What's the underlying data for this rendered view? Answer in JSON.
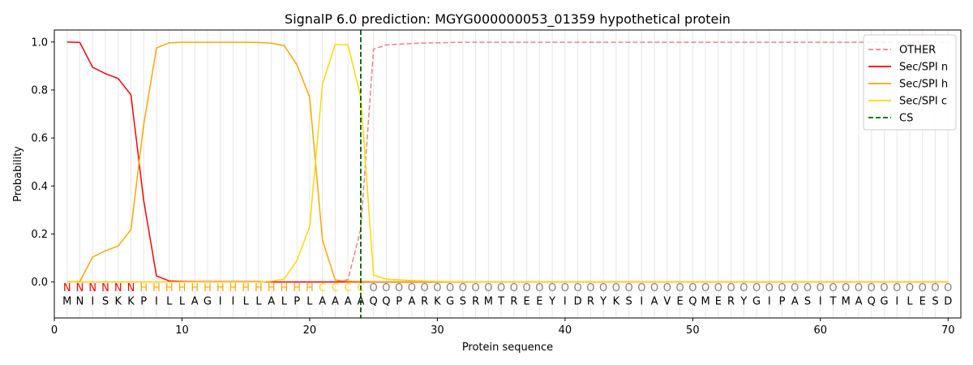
{
  "chart_data": {
    "type": "line",
    "title": "SignalP 6.0 prediction: MGYG000000053_01359 hypothetical protein",
    "xlabel": "Protein sequence",
    "ylabel": "Probability",
    "xlim": [
      0,
      71
    ],
    "ylim": [
      -0.15,
      1.05
    ],
    "xticks": [
      "0",
      "10",
      "20",
      "30",
      "40",
      "50",
      "60",
      "70"
    ],
    "yticks": [
      "0.0",
      "0.2",
      "0.4",
      "0.6",
      "0.8",
      "1.0"
    ],
    "legend_position": "top-right",
    "sequence": [
      "M",
      "N",
      "I",
      "S",
      "K",
      "K",
      "P",
      "I",
      "L",
      "L",
      "A",
      "G",
      "I",
      "I",
      "L",
      "L",
      "A",
      "L",
      "P",
      "L",
      "A",
      "A",
      "A",
      "A",
      "Q",
      "Q",
      "P",
      "A",
      "R",
      "K",
      "G",
      "S",
      "R",
      "M",
      "T",
      "R",
      "E",
      "E",
      "Y",
      "I",
      "D",
      "R",
      "Y",
      "K",
      "S",
      "I",
      "A",
      "V",
      "E",
      "Q",
      "M",
      "E",
      "R",
      "Y",
      "G",
      "I",
      "P",
      "A",
      "S",
      "I",
      "T",
      "M",
      "A",
      "Q",
      "G",
      "I",
      "L",
      "E",
      "S",
      "D"
    ],
    "region_labels": [
      "N",
      "N",
      "N",
      "N",
      "N",
      "N",
      "H",
      "H",
      "H",
      "H",
      "H",
      "H",
      "H",
      "H",
      "H",
      "H",
      "H",
      "H",
      "H",
      "H",
      "C",
      "C",
      "C",
      "C",
      "O",
      "O",
      "O",
      "O",
      "O",
      "O",
      "O",
      "O",
      "O",
      "O",
      "O",
      "O",
      "O",
      "O",
      "O",
      "O",
      "O",
      "O",
      "O",
      "O",
      "O",
      "O",
      "O",
      "O",
      "O",
      "O",
      "O",
      "O",
      "O",
      "O",
      "O",
      "O",
      "O",
      "O",
      "O",
      "O",
      "O",
      "O",
      "O",
      "O",
      "O",
      "O",
      "O",
      "O",
      "O",
      "O"
    ],
    "region_colors": {
      "N": "#ff0000",
      "H": "#ffa500",
      "C": "#ffd700",
      "O": "#808080"
    },
    "series": [
      {
        "name": "OTHER",
        "color": "#f08080",
        "dash": true,
        "values": [
          0,
          0,
          0,
          0,
          0,
          0,
          0,
          0,
          0,
          0,
          0,
          0,
          0,
          0,
          0,
          0,
          0,
          0,
          0,
          0,
          0,
          0,
          0.01,
          0.22,
          0.97,
          0.988,
          0.991,
          0.994,
          0.996,
          0.997,
          0.998,
          0.999,
          0.999,
          0.999,
          0.999,
          0.999,
          0.999,
          0.999,
          0.999,
          0.999,
          0.999,
          0.999,
          0.999,
          0.999,
          0.999,
          0.999,
          0.999,
          0.999,
          0.999,
          0.999,
          0.999,
          0.999,
          0.999,
          0.999,
          0.999,
          0.999,
          0.999,
          0.999,
          0.999,
          0.999,
          0.999,
          0.999,
          0.999,
          0.999,
          0.999,
          0.999,
          0.999,
          0.999,
          0.999,
          0.999
        ]
      },
      {
        "name": "Sec/SPI n",
        "color": "#ff0000",
        "dash": false,
        "values": [
          1.0,
          0.998,
          0.895,
          0.868,
          0.848,
          0.78,
          0.34,
          0.025,
          0.004,
          0.002,
          0.001,
          0.001,
          0.001,
          0.001,
          0.001,
          0.001,
          0,
          0,
          0,
          0,
          0,
          0,
          0,
          0,
          0,
          0,
          0,
          0,
          0,
          0,
          0,
          0,
          0,
          0,
          0,
          0,
          0,
          0,
          0,
          0,
          0,
          0,
          0,
          0,
          0,
          0,
          0,
          0,
          0,
          0,
          0,
          0,
          0,
          0,
          0,
          0,
          0,
          0,
          0,
          0,
          0,
          0,
          0,
          0,
          0,
          0,
          0,
          0,
          0,
          0
        ]
      },
      {
        "name": "Sec/SPI h",
        "color": "#ffa500",
        "dash": false,
        "values": [
          0,
          0.002,
          0.104,
          0.13,
          0.15,
          0.218,
          0.655,
          0.975,
          0.997,
          0.999,
          0.999,
          0.999,
          0.999,
          0.999,
          0.999,
          0.998,
          0.995,
          0.985,
          0.905,
          0.77,
          0.175,
          0.008,
          0.003,
          0.002,
          0.001,
          0.001,
          0.001,
          0.001,
          0.001,
          0.001,
          0,
          0,
          0,
          0,
          0,
          0,
          0,
          0,
          0,
          0,
          0,
          0,
          0,
          0,
          0,
          0,
          0,
          0,
          0,
          0,
          0,
          0,
          0,
          0,
          0,
          0,
          0,
          0,
          0,
          0,
          0,
          0,
          0,
          0,
          0,
          0,
          0,
          0,
          0,
          0
        ]
      },
      {
        "name": "Sec/SPI c",
        "color": "#ffd700",
        "dash": false,
        "values": [
          0,
          0,
          0,
          0,
          0,
          0,
          0,
          0,
          0,
          0,
          0,
          0,
          0,
          0,
          0,
          0,
          0.003,
          0.012,
          0.09,
          0.23,
          0.825,
          0.99,
          0.988,
          0.77,
          0.028,
          0.012,
          0.009,
          0.006,
          0.004,
          0.002,
          0.001,
          0.001,
          0,
          0,
          0,
          0,
          0,
          0,
          0,
          0,
          0,
          0,
          0,
          0,
          0,
          0,
          0,
          0,
          0,
          0,
          0,
          0,
          0,
          0,
          0,
          0,
          0,
          0,
          0,
          0,
          0,
          0,
          0,
          0,
          0,
          0,
          0,
          0,
          0,
          0
        ]
      }
    ],
    "cs": {
      "name": "CS",
      "x": 24,
      "color": "#006400"
    }
  }
}
